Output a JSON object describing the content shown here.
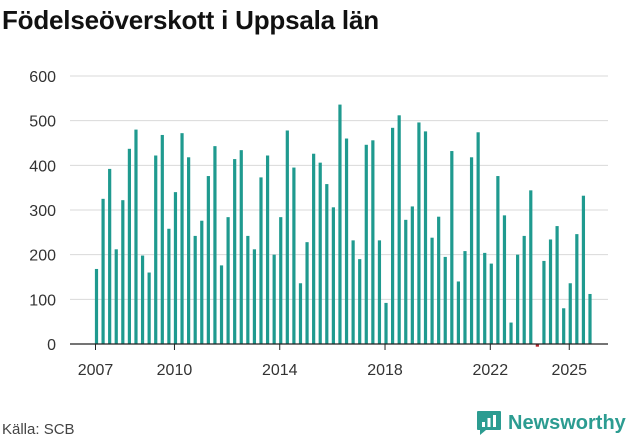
{
  "chart_data": {
    "type": "bar",
    "title": "Födelseöverskott i Uppsala län",
    "source": "Källa: SCB",
    "brand": "Newsworthy",
    "xlabel": "",
    "ylabel": "",
    "ylim": [
      0,
      600
    ],
    "y_ticks": [
      0,
      100,
      200,
      300,
      400,
      500,
      600
    ],
    "x_tick_labels": [
      {
        "label": "2007",
        "index": 0
      },
      {
        "label": "2010",
        "index": 12
      },
      {
        "label": "2014",
        "index": 28
      },
      {
        "label": "2018",
        "index": 44
      },
      {
        "label": "2022",
        "index": 60
      },
      {
        "label": "2025",
        "index": 72
      }
    ],
    "start": "2007 Q1",
    "frequency": "quarterly",
    "series": [
      {
        "name": "Födelseöverskott",
        "color": "#1f9a8f",
        "negative_color": "#b3242a",
        "values": [
          168,
          325,
          392,
          212,
          322,
          437,
          480,
          198,
          160,
          422,
          468,
          258,
          340,
          472,
          418,
          242,
          276,
          376,
          443,
          176,
          284,
          414,
          434,
          242,
          212,
          373,
          422,
          200,
          284,
          478,
          395,
          136,
          228,
          426,
          406,
          358,
          306,
          536,
          460,
          232,
          190,
          446,
          456,
          232,
          92,
          484,
          512,
          278,
          308,
          496,
          476,
          238,
          285,
          195,
          432,
          140,
          208,
          418,
          474,
          204,
          180,
          376,
          288,
          48,
          200,
          242,
          344,
          -6,
          186,
          234,
          264,
          80,
          136,
          246,
          332,
          112
        ]
      }
    ]
  }
}
